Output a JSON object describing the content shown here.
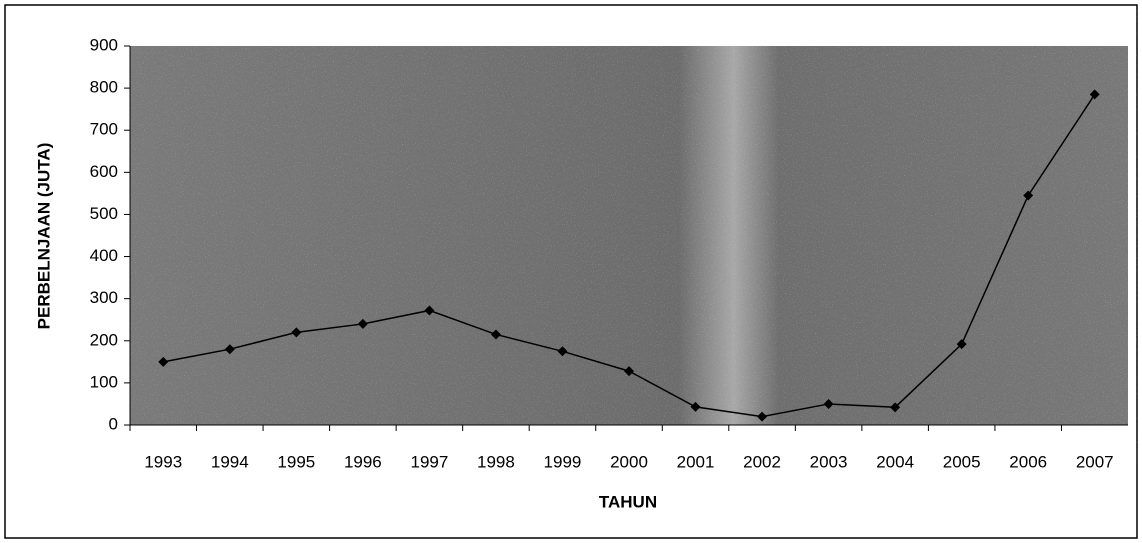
{
  "chart_data": {
    "type": "line",
    "categories": [
      "1993",
      "1994",
      "1995",
      "1996",
      "1997",
      "1998",
      "1999",
      "2000",
      "2001",
      "2002",
      "2003",
      "2004",
      "2005",
      "2006",
      "2007"
    ],
    "values": [
      150,
      180,
      220,
      240,
      272,
      215,
      175,
      128,
      43,
      20,
      50,
      42,
      192,
      545,
      785
    ],
    "color": "#000000",
    "ylim": [
      0,
      900
    ],
    "yticks": [
      0,
      100,
      200,
      300,
      400,
      500,
      600,
      700,
      800,
      900
    ],
    "xlabel": "TAHUN",
    "ylabel": "PERBELNJAAN (JUTA)"
  }
}
